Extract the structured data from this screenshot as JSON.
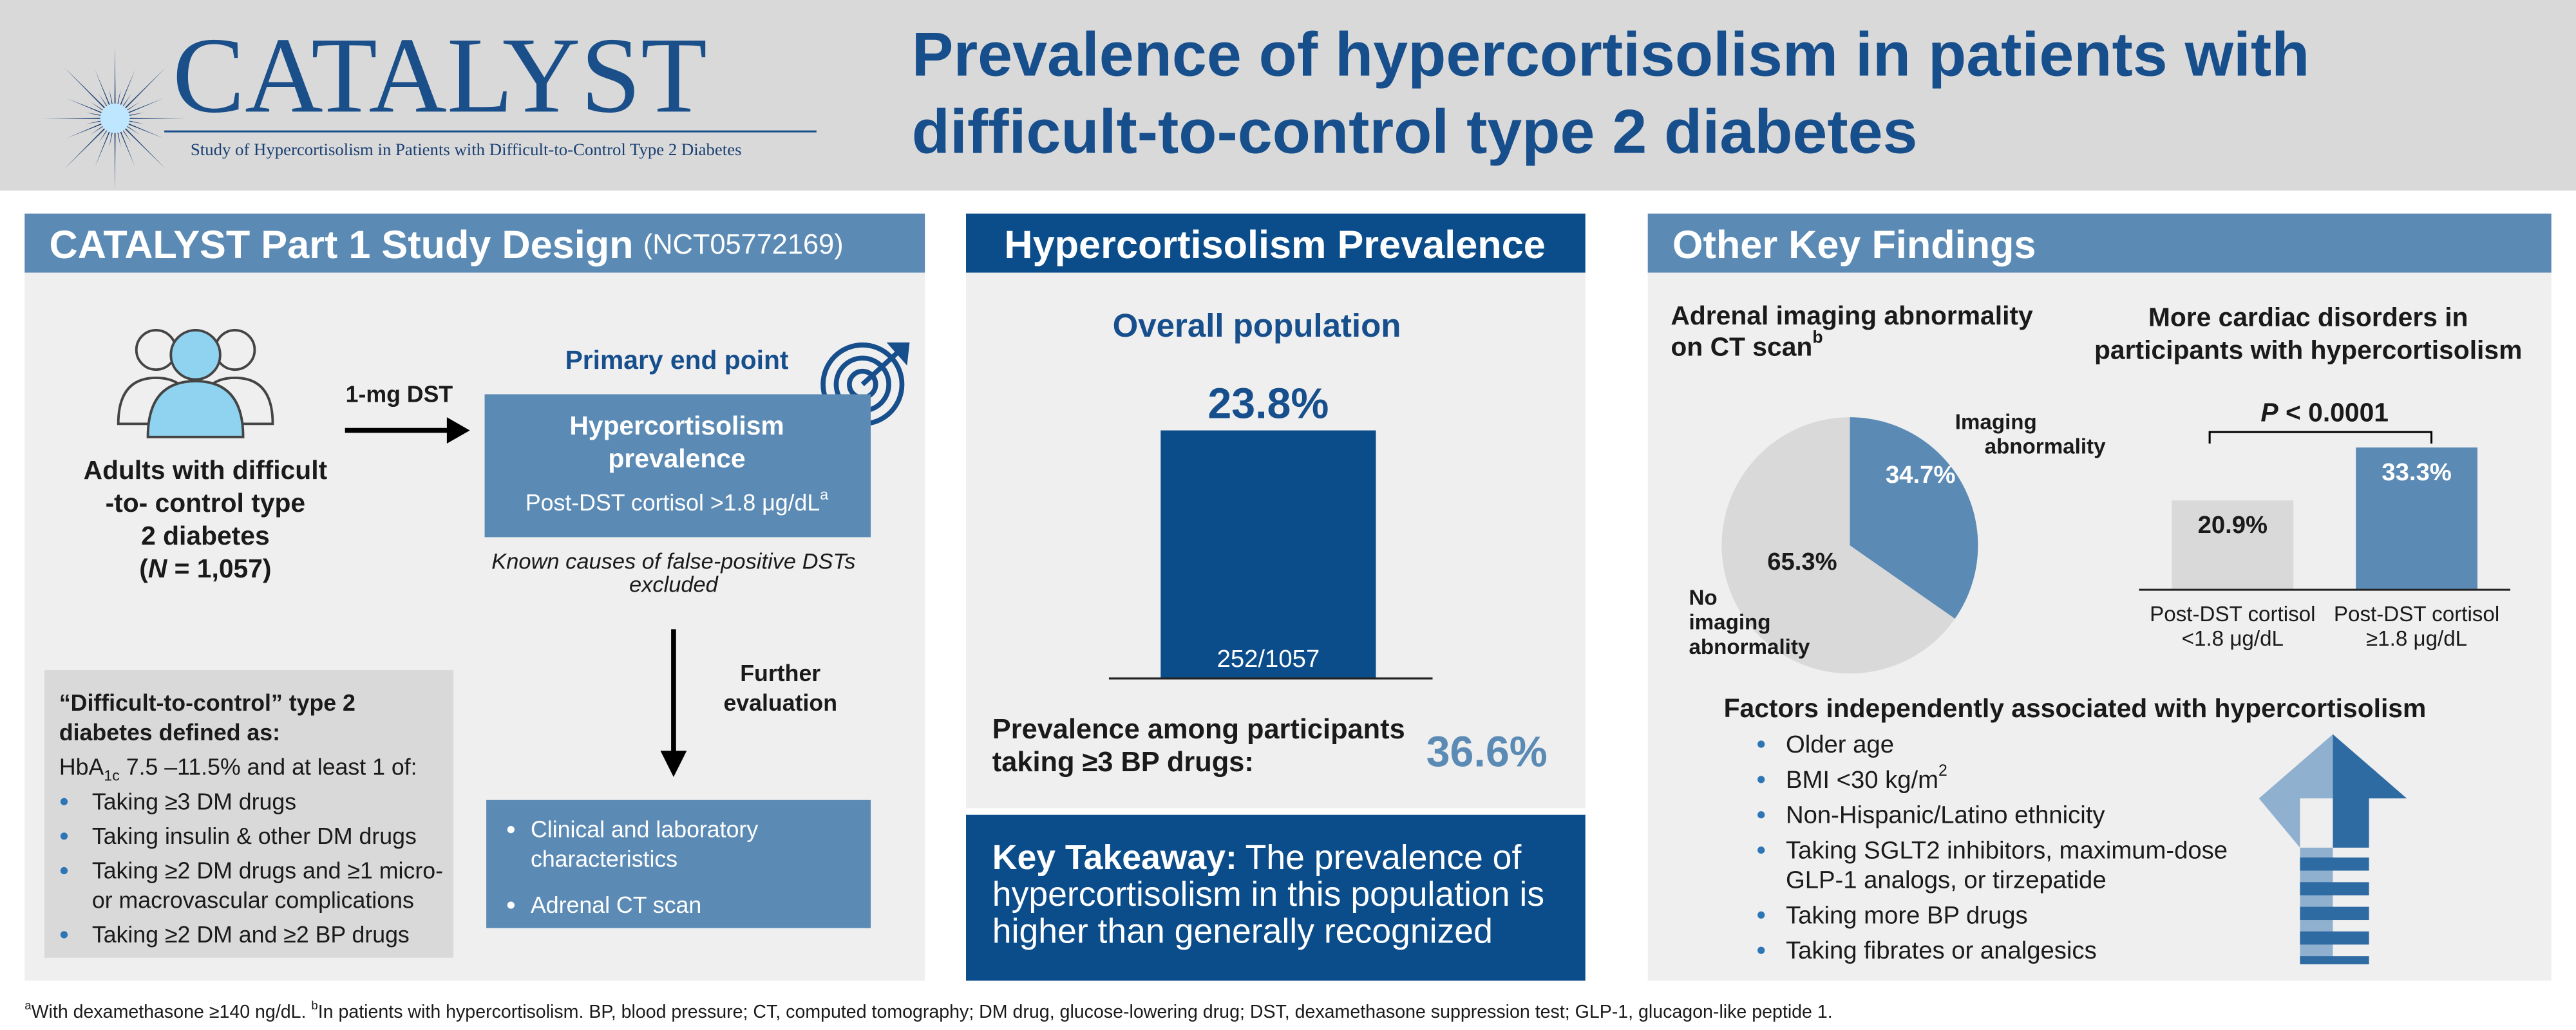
{
  "header": {
    "logo": "CATALYST",
    "logo_subtitle": "Study of Hypercortisolism in Patients with Difficult-to-Control Type 2 Diabetes",
    "title": [
      "Prevalence of hypercortisolism in patients with",
      "difficult-to-control type 2 diabetes"
    ]
  },
  "study_design": {
    "title": "CATALYST Part 1 Study Design",
    "trial_id": "(NCT05772169)",
    "population": [
      "Adults with difficult",
      "-to- control type",
      "2 diabetes"
    ],
    "population_n": [
      "(",
      "N",
      " = 1,057)"
    ],
    "test": "1-mg DST",
    "endpoint_label": "Primary end point",
    "endpoint": [
      "Hypercortisolism",
      "prevalence"
    ],
    "criterion": [
      "Post-DST cortisol >1.8 μg/dL",
      "a"
    ],
    "exclusion": [
      "Known causes of false-positive DSTs",
      "excluded"
    ],
    "next_step": [
      "Further",
      "evaluation"
    ],
    "evaluation": [
      [
        "Clinical and laboratory",
        "characteristics"
      ],
      [
        "Adrenal CT scan"
      ]
    ],
    "definition": {
      "title": [
        "“Difficult-to-control” type 2",
        "diabetes defined as:"
      ],
      "criterion": [
        "HbA",
        "1c",
        " 7.5 –11.5% and at least 1 of:"
      ],
      "items": [
        [
          "Taking ≥3 DM drugs"
        ],
        [
          "Taking insulin & other DM drugs"
        ],
        [
          "Taking ≥2 DM drugs and ≥1 micro-",
          "or macrovascular complications"
        ],
        [
          "Taking ≥2 DM and ≥2 BP drugs"
        ]
      ]
    }
  },
  "prevalence": {
    "title": "Hypercortisolism Prevalence",
    "bp_label": [
      "Prevalence among participants",
      "taking ≥3 BP drugs:"
    ],
    "bp_value": "36.6%",
    "takeaway_label": "Key Takeaway:",
    "takeaway": [
      "The prevalence of",
      "hypercortisolism in this population is",
      "higher than generally recognized"
    ]
  },
  "other_findings": {
    "title": "Other Key Findings",
    "factors_title": "Factors independently associated with hypercortisolism",
    "factors": [
      {
        "lines": [
          "Older age"
        ]
      },
      {
        "lines": [
          "BMI <30 kg/m"
        ],
        "sup": "2"
      },
      {
        "lines": [
          "Non-Hispanic/Latino ethnicity"
        ]
      },
      {
        "lines": [
          "Taking SGLT2 inhibitors, maximum-dose",
          "GLP-1 analogs, or tirzepatide"
        ]
      },
      {
        "lines": [
          "Taking more BP drugs"
        ]
      },
      {
        "lines": [
          "Taking fibrates or analgesics"
        ]
      }
    ]
  },
  "chart_data": [
    {
      "type": "bar",
      "title": "Overall population",
      "values": [
        23.8
      ],
      "value_labels": [
        "23.8%"
      ],
      "count_labels": [
        "252/1057"
      ],
      "color": "#0b4d8a"
    },
    {
      "type": "pie",
      "title": [
        "Adrenal imaging abnormality",
        "on CT scan"
      ],
      "title_sup": "b",
      "labels": [
        [
          "Imaging",
          "abnormality"
        ],
        [
          "No",
          "imaging",
          "abnormality"
        ]
      ],
      "values": [
        34.7,
        65.3
      ],
      "value_labels": [
        "34.7%",
        "65.3%"
      ],
      "colors": [
        "#5b8bb5",
        "#d9d9d9"
      ]
    },
    {
      "type": "bar",
      "title": [
        "More cardiac disorders in",
        "participants with hypercortisolism"
      ],
      "annotation": [
        "P",
        " < 0.0001"
      ],
      "categories": [
        [
          "Post-DST cortisol",
          "<1.8 μg/dL"
        ],
        [
          "Post-DST cortisol",
          "≥1.8 μg/dL"
        ]
      ],
      "values": [
        20.9,
        33.3
      ],
      "value_labels": [
        "20.9%",
        "33.3%"
      ],
      "colors": [
        "#d9d9d9",
        "#5b8bb5"
      ]
    }
  ],
  "footnote": [
    "a",
    "With dexamethasone ≥140 ng/dL. ",
    "b",
    "In patients with hypercortisolism. BP, blood pressure; CT, computed tomography; DM drug, glucose-lowering drug; DST, dexamethasone suppression test; GLP-1, glucagon-like peptide 1."
  ]
}
